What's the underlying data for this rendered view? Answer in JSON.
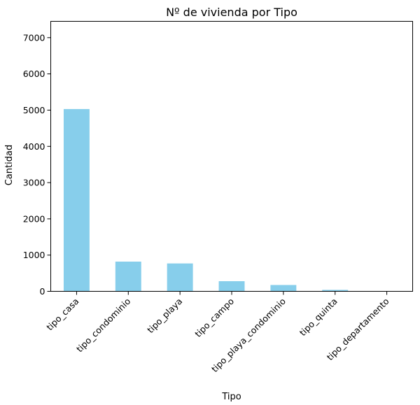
{
  "chart_data": {
    "type": "bar",
    "title": "Nº de vivienda por Tipo",
    "xlabel": "Tipo",
    "ylabel": "Cantidad",
    "categories": [
      "tipo_casa",
      "tipo_condominio",
      "tipo_playa",
      "tipo_campo",
      "tipo_playa_condominio",
      "tipo_quinta",
      "tipo_departamento"
    ],
    "values": [
      5030,
      820,
      770,
      280,
      175,
      40,
      5
    ],
    "ylim": [
      0,
      7450
    ],
    "yticks": [
      0,
      1000,
      2000,
      3000,
      4000,
      5000,
      6000,
      7000
    ],
    "grid": false,
    "legend": "none",
    "bar_color": "#87ceeb"
  }
}
